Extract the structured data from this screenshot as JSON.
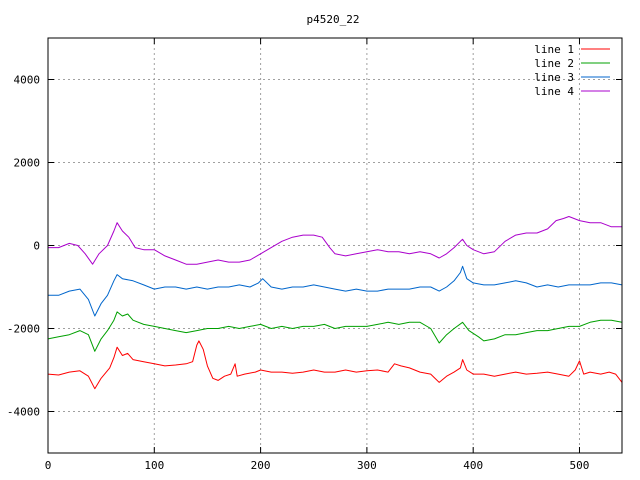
{
  "chart_data": {
    "type": "line",
    "title": "p4520_22",
    "xlabel": "",
    "ylabel": "",
    "xlim": [
      0,
      540
    ],
    "ylim": [
      -5000,
      5000
    ],
    "xticks": [
      0,
      100,
      200,
      300,
      400,
      500
    ],
    "yticks": [
      -4000,
      -2000,
      0,
      2000,
      4000
    ],
    "xtick_labels": [
      "0",
      "100",
      "200",
      "300",
      "400",
      "500"
    ],
    "ytick_labels": [
      "-4000",
      "-2000",
      "0",
      "2000",
      "4000"
    ],
    "grid": true,
    "legend_position": "top-right",
    "series": [
      {
        "name": "line 1",
        "color": "#ff0000",
        "points": [
          [
            0,
            -3100
          ],
          [
            10,
            -3120
          ],
          [
            20,
            -3050
          ],
          [
            30,
            -3020
          ],
          [
            38,
            -3150
          ],
          [
            44,
            -3450
          ],
          [
            50,
            -3200
          ],
          [
            58,
            -2950
          ],
          [
            62,
            -2700
          ],
          [
            65,
            -2450
          ],
          [
            70,
            -2650
          ],
          [
            75,
            -2600
          ],
          [
            80,
            -2750
          ],
          [
            90,
            -2800
          ],
          [
            100,
            -2850
          ],
          [
            110,
            -2900
          ],
          [
            120,
            -2880
          ],
          [
            130,
            -2850
          ],
          [
            136,
            -2800
          ],
          [
            140,
            -2400
          ],
          [
            142,
            -2300
          ],
          [
            146,
            -2500
          ],
          [
            150,
            -2900
          ],
          [
            155,
            -3200
          ],
          [
            160,
            -3250
          ],
          [
            166,
            -3150
          ],
          [
            172,
            -3100
          ],
          [
            176,
            -2850
          ],
          [
            178,
            -3150
          ],
          [
            185,
            -3100
          ],
          [
            195,
            -3050
          ],
          [
            200,
            -3000
          ],
          [
            210,
            -3050
          ],
          [
            220,
            -3050
          ],
          [
            230,
            -3080
          ],
          [
            240,
            -3050
          ],
          [
            250,
            -3000
          ],
          [
            260,
            -3050
          ],
          [
            270,
            -3050
          ],
          [
            280,
            -3000
          ],
          [
            290,
            -3050
          ],
          [
            300,
            -3020
          ],
          [
            310,
            -3000
          ],
          [
            320,
            -3050
          ],
          [
            326,
            -2850
          ],
          [
            332,
            -2900
          ],
          [
            340,
            -2950
          ],
          [
            350,
            -3050
          ],
          [
            360,
            -3100
          ],
          [
            368,
            -3300
          ],
          [
            375,
            -3150
          ],
          [
            382,
            -3050
          ],
          [
            388,
            -2950
          ],
          [
            390,
            -2750
          ],
          [
            394,
            -3000
          ],
          [
            400,
            -3100
          ],
          [
            410,
            -3100
          ],
          [
            420,
            -3150
          ],
          [
            430,
            -3100
          ],
          [
            440,
            -3050
          ],
          [
            450,
            -3100
          ],
          [
            460,
            -3080
          ],
          [
            470,
            -3050
          ],
          [
            480,
            -3100
          ],
          [
            490,
            -3150
          ],
          [
            496,
            -3000
          ],
          [
            500,
            -2780
          ],
          [
            504,
            -3100
          ],
          [
            510,
            -3050
          ],
          [
            520,
            -3100
          ],
          [
            528,
            -3050
          ],
          [
            534,
            -3100
          ],
          [
            540,
            -3300
          ]
        ]
      },
      {
        "name": "line 2",
        "color": "#00a000",
        "points": [
          [
            0,
            -2250
          ],
          [
            10,
            -2200
          ],
          [
            20,
            -2150
          ],
          [
            30,
            -2050
          ],
          [
            38,
            -2150
          ],
          [
            44,
            -2550
          ],
          [
            50,
            -2250
          ],
          [
            56,
            -2050
          ],
          [
            62,
            -1800
          ],
          [
            65,
            -1600
          ],
          [
            70,
            -1700
          ],
          [
            75,
            -1650
          ],
          [
            80,
            -1800
          ],
          [
            90,
            -1900
          ],
          [
            100,
            -1950
          ],
          [
            110,
            -2000
          ],
          [
            120,
            -2050
          ],
          [
            130,
            -2100
          ],
          [
            140,
            -2050
          ],
          [
            150,
            -2000
          ],
          [
            160,
            -2000
          ],
          [
            170,
            -1950
          ],
          [
            180,
            -2000
          ],
          [
            190,
            -1950
          ],
          [
            200,
            -1900
          ],
          [
            210,
            -2000
          ],
          [
            220,
            -1950
          ],
          [
            230,
            -2000
          ],
          [
            240,
            -1950
          ],
          [
            250,
            -1950
          ],
          [
            260,
            -1900
          ],
          [
            270,
            -2000
          ],
          [
            280,
            -1950
          ],
          [
            290,
            -1950
          ],
          [
            300,
            -1950
          ],
          [
            310,
            -1900
          ],
          [
            320,
            -1850
          ],
          [
            330,
            -1900
          ],
          [
            340,
            -1850
          ],
          [
            350,
            -1850
          ],
          [
            360,
            -2000
          ],
          [
            368,
            -2350
          ],
          [
            375,
            -2150
          ],
          [
            382,
            -2000
          ],
          [
            390,
            -1850
          ],
          [
            396,
            -2050
          ],
          [
            405,
            -2200
          ],
          [
            410,
            -2300
          ],
          [
            420,
            -2250
          ],
          [
            430,
            -2150
          ],
          [
            440,
            -2150
          ],
          [
            450,
            -2100
          ],
          [
            460,
            -2050
          ],
          [
            470,
            -2050
          ],
          [
            480,
            -2000
          ],
          [
            490,
            -1950
          ],
          [
            500,
            -1950
          ],
          [
            510,
            -1850
          ],
          [
            520,
            -1800
          ],
          [
            530,
            -1800
          ],
          [
            540,
            -1850
          ]
        ]
      },
      {
        "name": "line 3",
        "color": "#0066cc",
        "points": [
          [
            0,
            -1200
          ],
          [
            10,
            -1200
          ],
          [
            20,
            -1100
          ],
          [
            30,
            -1050
          ],
          [
            38,
            -1300
          ],
          [
            44,
            -1700
          ],
          [
            50,
            -1400
          ],
          [
            56,
            -1200
          ],
          [
            62,
            -850
          ],
          [
            65,
            -700
          ],
          [
            70,
            -800
          ],
          [
            80,
            -850
          ],
          [
            90,
            -950
          ],
          [
            100,
            -1050
          ],
          [
            110,
            -1000
          ],
          [
            120,
            -1000
          ],
          [
            130,
            -1050
          ],
          [
            140,
            -1000
          ],
          [
            150,
            -1050
          ],
          [
            160,
            -1000
          ],
          [
            170,
            -1000
          ],
          [
            180,
            -950
          ],
          [
            190,
            -1000
          ],
          [
            198,
            -900
          ],
          [
            202,
            -800
          ],
          [
            210,
            -1000
          ],
          [
            220,
            -1050
          ],
          [
            230,
            -1000
          ],
          [
            240,
            -1000
          ],
          [
            250,
            -950
          ],
          [
            260,
            -1000
          ],
          [
            270,
            -1050
          ],
          [
            280,
            -1100
          ],
          [
            290,
            -1050
          ],
          [
            300,
            -1100
          ],
          [
            310,
            -1100
          ],
          [
            320,
            -1050
          ],
          [
            330,
            -1050
          ],
          [
            340,
            -1050
          ],
          [
            350,
            -1000
          ],
          [
            360,
            -1000
          ],
          [
            368,
            -1100
          ],
          [
            375,
            -1000
          ],
          [
            382,
            -850
          ],
          [
            388,
            -650
          ],
          [
            390,
            -500
          ],
          [
            394,
            -800
          ],
          [
            400,
            -900
          ],
          [
            410,
            -950
          ],
          [
            420,
            -950
          ],
          [
            430,
            -900
          ],
          [
            440,
            -850
          ],
          [
            450,
            -900
          ],
          [
            460,
            -1000
          ],
          [
            470,
            -950
          ],
          [
            480,
            -1000
          ],
          [
            490,
            -950
          ],
          [
            500,
            -950
          ],
          [
            510,
            -950
          ],
          [
            520,
            -900
          ],
          [
            530,
            -900
          ],
          [
            540,
            -950
          ]
        ]
      },
      {
        "name": "line 4",
        "color": "#aa00cc",
        "points": [
          [
            0,
            -50
          ],
          [
            10,
            -50
          ],
          [
            20,
            50
          ],
          [
            28,
            0
          ],
          [
            35,
            -200
          ],
          [
            42,
            -450
          ],
          [
            48,
            -200
          ],
          [
            56,
            0
          ],
          [
            62,
            350
          ],
          [
            65,
            550
          ],
          [
            70,
            350
          ],
          [
            76,
            200
          ],
          [
            82,
            -50
          ],
          [
            90,
            -100
          ],
          [
            100,
            -100
          ],
          [
            110,
            -250
          ],
          [
            120,
            -350
          ],
          [
            130,
            -450
          ],
          [
            140,
            -450
          ],
          [
            150,
            -400
          ],
          [
            160,
            -350
          ],
          [
            170,
            -400
          ],
          [
            180,
            -400
          ],
          [
            190,
            -350
          ],
          [
            200,
            -200
          ],
          [
            210,
            -50
          ],
          [
            220,
            100
          ],
          [
            230,
            200
          ],
          [
            240,
            250
          ],
          [
            250,
            250
          ],
          [
            258,
            200
          ],
          [
            265,
            -50
          ],
          [
            270,
            -200
          ],
          [
            280,
            -250
          ],
          [
            290,
            -200
          ],
          [
            300,
            -150
          ],
          [
            310,
            -100
          ],
          [
            320,
            -150
          ],
          [
            330,
            -150
          ],
          [
            340,
            -200
          ],
          [
            350,
            -150
          ],
          [
            360,
            -200
          ],
          [
            368,
            -300
          ],
          [
            375,
            -200
          ],
          [
            382,
            -50
          ],
          [
            388,
            100
          ],
          [
            390,
            150
          ],
          [
            394,
            0
          ],
          [
            400,
            -100
          ],
          [
            410,
            -200
          ],
          [
            420,
            -150
          ],
          [
            430,
            100
          ],
          [
            440,
            250
          ],
          [
            450,
            300
          ],
          [
            460,
            300
          ],
          [
            470,
            400
          ],
          [
            478,
            600
          ],
          [
            485,
            650
          ],
          [
            490,
            700
          ],
          [
            500,
            600
          ],
          [
            510,
            550
          ],
          [
            520,
            550
          ],
          [
            530,
            450
          ],
          [
            540,
            450
          ]
        ]
      }
    ]
  }
}
